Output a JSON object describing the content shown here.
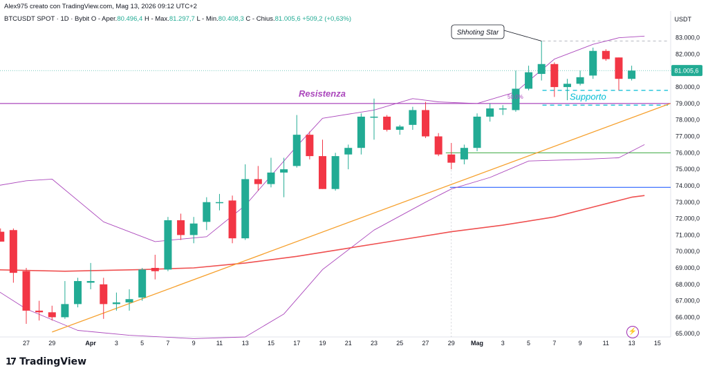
{
  "header": {
    "line1": "Alex975 creato con TradingView.com, Mag 13, 2026 09:12 UTC+2",
    "symbol": "BTCUSDT SPOT · 1D · Bybit",
    "open_label": "O - Aper.",
    "open_value": "80.496,4",
    "high_label": "H - Max.",
    "high_value": "81.297,7",
    "low_label": "L - Min.",
    "low_value": "80.408,3",
    "close_label": "C - Chius.",
    "close_value": "81.005,6",
    "change_value": "+509,2 (+0,63%)"
  },
  "footer": {
    "brand": "TradingView",
    "logo_icon": "tradingview-logo-icon"
  },
  "colors": {
    "up": "#22ab94",
    "down": "#f23645",
    "accent": "#ab47bc",
    "trend": "#f6a02d",
    "ma": "#ef4f4f",
    "support": "#00bcd4",
    "green_line": "#4caf50",
    "blue_line": "#2962ff"
  },
  "chart_data": {
    "type": "candlestick",
    "unit": "USDT",
    "ylim": [
      64800,
      83700
    ],
    "y_ticks": [
      "65.000,0",
      "66.000,0",
      "67.000,0",
      "68.000,0",
      "69.000,0",
      "70.000,0",
      "71.000,0",
      "72.000,0",
      "73.000,0",
      "74.000,0",
      "75.000,0",
      "76.000,0",
      "77.000,0",
      "78.000,0",
      "79.000,0",
      "80.000,0",
      "81.000,0",
      "82.000,0",
      "83.000,0"
    ],
    "x_ticks": [
      "27",
      "29",
      "Apr",
      "3",
      "5",
      "7",
      "9",
      "11",
      "13",
      "15",
      "17",
      "19",
      "21",
      "23",
      "25",
      "27",
      "29",
      "Mag",
      "3",
      "5",
      "7",
      "9",
      "11",
      "13",
      "15"
    ],
    "last_price_label": "81.005,6",
    "candles": [
      {
        "date": "2026-03-25",
        "o": 71200,
        "h": 71400,
        "l": 70600,
        "c": 70600
      },
      {
        "date": "2026-03-26",
        "o": 71300,
        "h": 71400,
        "l": 68100,
        "c": 68700
      },
      {
        "date": "2026-03-27",
        "o": 68800,
        "h": 69000,
        "l": 65600,
        "c": 66400
      },
      {
        "date": "2026-03-28",
        "o": 66400,
        "h": 67000,
        "l": 65800,
        "c": 66300
      },
      {
        "date": "2026-03-29",
        "o": 66300,
        "h": 66700,
        "l": 65800,
        "c": 66000
      },
      {
        "date": "2026-03-30",
        "o": 66000,
        "h": 68200,
        "l": 65900,
        "c": 66800
      },
      {
        "date": "2026-03-31",
        "o": 66800,
        "h": 68400,
        "l": 66600,
        "c": 68200
      },
      {
        "date": "2026-04-01",
        "o": 68100,
        "h": 69300,
        "l": 67700,
        "c": 68200
      },
      {
        "date": "2026-04-02",
        "o": 68000,
        "h": 68400,
        "l": 65900,
        "c": 66800
      },
      {
        "date": "2026-04-03",
        "o": 66800,
        "h": 67500,
        "l": 66400,
        "c": 66900
      },
      {
        "date": "2026-04-04",
        "o": 66900,
        "h": 67700,
        "l": 66400,
        "c": 67100
      },
      {
        "date": "2026-04-05",
        "o": 67200,
        "h": 69000,
        "l": 67000,
        "c": 68900
      },
      {
        "date": "2026-04-06",
        "o": 69000,
        "h": 69800,
        "l": 68300,
        "c": 68800
      },
      {
        "date": "2026-04-07",
        "o": 68900,
        "h": 72100,
        "l": 68800,
        "c": 71900
      },
      {
        "date": "2026-04-08",
        "o": 71900,
        "h": 72300,
        "l": 70700,
        "c": 71000
      },
      {
        "date": "2026-04-09",
        "o": 71000,
        "h": 72100,
        "l": 70500,
        "c": 71700
      },
      {
        "date": "2026-04-10",
        "o": 71800,
        "h": 73300,
        "l": 71300,
        "c": 73000
      },
      {
        "date": "2026-04-11",
        "o": 73000,
        "h": 73500,
        "l": 72500,
        "c": 73000
      },
      {
        "date": "2026-04-12",
        "o": 73100,
        "h": 73400,
        "l": 70500,
        "c": 70800
      },
      {
        "date": "2026-04-13",
        "o": 70800,
        "h": 75300,
        "l": 70700,
        "c": 74400
      },
      {
        "date": "2026-04-14",
        "o": 74400,
        "h": 75200,
        "l": 73700,
        "c": 74100
      },
      {
        "date": "2026-04-15",
        "o": 74100,
        "h": 75700,
        "l": 73900,
        "c": 74800
      },
      {
        "date": "2026-04-16",
        "o": 74800,
        "h": 75700,
        "l": 73300,
        "c": 75000
      },
      {
        "date": "2026-04-17",
        "o": 75200,
        "h": 78300,
        "l": 75100,
        "c": 77100
      },
      {
        "date": "2026-04-18",
        "o": 77100,
        "h": 77300,
        "l": 75600,
        "c": 75800
      },
      {
        "date": "2026-04-19",
        "o": 75800,
        "h": 76800,
        "l": 73800,
        "c": 73800
      },
      {
        "date": "2026-04-20",
        "o": 73800,
        "h": 76000,
        "l": 73700,
        "c": 75800
      },
      {
        "date": "2026-04-21",
        "o": 75900,
        "h": 76500,
        "l": 75000,
        "c": 76300
      },
      {
        "date": "2026-04-22",
        "o": 76300,
        "h": 78400,
        "l": 75900,
        "c": 78200
      },
      {
        "date": "2026-04-23",
        "o": 78200,
        "h": 79300,
        "l": 76800,
        "c": 78200
      },
      {
        "date": "2026-04-24",
        "o": 78200,
        "h": 78300,
        "l": 77300,
        "c": 77400
      },
      {
        "date": "2026-04-25",
        "o": 77400,
        "h": 77700,
        "l": 77100,
        "c": 77600
      },
      {
        "date": "2026-04-26",
        "o": 77700,
        "h": 78800,
        "l": 77400,
        "c": 78600
      },
      {
        "date": "2026-04-27",
        "o": 78600,
        "h": 79100,
        "l": 76900,
        "c": 77000
      },
      {
        "date": "2026-04-28",
        "o": 77000,
        "h": 77200,
        "l": 75800,
        "c": 75900
      },
      {
        "date": "2026-04-29",
        "o": 75900,
        "h": 76600,
        "l": 75000,
        "c": 75400
      },
      {
        "date": "2026-04-30",
        "o": 75600,
        "h": 76500,
        "l": 75300,
        "c": 76300
      },
      {
        "date": "2026-05-01",
        "o": 76300,
        "h": 78400,
        "l": 76100,
        "c": 78200
      },
      {
        "date": "2026-05-02",
        "o": 78200,
        "h": 79000,
        "l": 77900,
        "c": 78700
      },
      {
        "date": "2026-05-03",
        "o": 78700,
        "h": 78900,
        "l": 78300,
        "c": 78700
      },
      {
        "date": "2026-05-04",
        "o": 78600,
        "h": 81000,
        "l": 78500,
        "c": 79900
      },
      {
        "date": "2026-05-05",
        "o": 79900,
        "h": 81300,
        "l": 79800,
        "c": 80900
      },
      {
        "date": "2026-05-06",
        "o": 80800,
        "h": 82800,
        "l": 80400,
        "c": 81400
      },
      {
        "date": "2026-05-07",
        "o": 81400,
        "h": 81500,
        "l": 79400,
        "c": 80000
      },
      {
        "date": "2026-05-08",
        "o": 80000,
        "h": 80500,
        "l": 79200,
        "c": 80200
      },
      {
        "date": "2026-05-09",
        "o": 80200,
        "h": 81000,
        "l": 80100,
        "c": 80600
      },
      {
        "date": "2026-05-10",
        "o": 80700,
        "h": 82400,
        "l": 80500,
        "c": 82200
      },
      {
        "date": "2026-05-11",
        "o": 82200,
        "h": 82300,
        "l": 81600,
        "c": 81700
      },
      {
        "date": "2026-05-12",
        "o": 81800,
        "h": 81800,
        "l": 79800,
        "c": 80500
      },
      {
        "date": "2026-05-13",
        "o": 80500,
        "h": 81300,
        "l": 80400,
        "c": 81000
      }
    ],
    "moving_average": [
      {
        "date": "2026-03-24",
        "v": 68900
      },
      {
        "date": "2026-03-30",
        "v": 68800
      },
      {
        "date": "2026-04-05",
        "v": 68900
      },
      {
        "date": "2026-04-09",
        "v": 69000
      },
      {
        "date": "2026-04-13",
        "v": 69300
      },
      {
        "date": "2026-04-17",
        "v": 69700
      },
      {
        "date": "2026-04-21",
        "v": 70200
      },
      {
        "date": "2026-04-25",
        "v": 70700
      },
      {
        "date": "2026-04-29",
        "v": 71200
      },
      {
        "date": "2026-05-03",
        "v": 71600
      },
      {
        "date": "2026-05-07",
        "v": 72100
      },
      {
        "date": "2026-05-10",
        "v": 72700
      },
      {
        "date": "2026-05-13",
        "v": 73300
      },
      {
        "date": "2026-05-14",
        "v": 73400
      }
    ],
    "bollinger_upper": [
      {
        "date": "2026-03-24",
        "v": 73900
      },
      {
        "date": "2026-03-27",
        "v": 74300
      },
      {
        "date": "2026-03-29",
        "v": 74400
      },
      {
        "date": "2026-04-02",
        "v": 71800
      },
      {
        "date": "2026-04-06",
        "v": 70600
      },
      {
        "date": "2026-04-10",
        "v": 70900
      },
      {
        "date": "2026-04-13",
        "v": 72800
      },
      {
        "date": "2026-04-17",
        "v": 76400
      },
      {
        "date": "2026-04-19",
        "v": 78100
      },
      {
        "date": "2026-04-23",
        "v": 78600
      },
      {
        "date": "2026-04-26",
        "v": 79300
      },
      {
        "date": "2026-04-28",
        "v": 79100
      },
      {
        "date": "2026-05-01",
        "v": 79000
      },
      {
        "date": "2026-05-04",
        "v": 79700
      },
      {
        "date": "2026-05-07",
        "v": 81700
      },
      {
        "date": "2026-05-10",
        "v": 82600
      },
      {
        "date": "2026-05-12",
        "v": 83000
      },
      {
        "date": "2026-05-14",
        "v": 83100
      }
    ],
    "bollinger_lower": [
      {
        "date": "2026-03-24",
        "v": 68000
      },
      {
        "date": "2026-03-27",
        "v": 66500
      },
      {
        "date": "2026-03-31",
        "v": 65200
      },
      {
        "date": "2026-04-04",
        "v": 64900
      },
      {
        "date": "2026-04-09",
        "v": 64700
      },
      {
        "date": "2026-04-13",
        "v": 64800
      },
      {
        "date": "2026-04-16",
        "v": 66200
      },
      {
        "date": "2026-04-19",
        "v": 68900
      },
      {
        "date": "2026-04-23",
        "v": 71300
      },
      {
        "date": "2026-04-27",
        "v": 73000
      },
      {
        "date": "2026-04-29",
        "v": 73800
      },
      {
        "date": "2026-05-02",
        "v": 74500
      },
      {
        "date": "2026-05-05",
        "v": 75500
      },
      {
        "date": "2026-05-09",
        "v": 75600
      },
      {
        "date": "2026-05-12",
        "v": 75700
      },
      {
        "date": "2026-05-14",
        "v": 76500
      }
    ],
    "resistance_level": 79000,
    "support_levels": [
      79800,
      78900
    ],
    "green_level": 76000,
    "blue_level": 73900,
    "trendline": [
      {
        "date": "2026-03-29",
        "v": 65100
      },
      {
        "date": "2026-05-16",
        "v": 79000
      }
    ],
    "annotations": {
      "resistance_label": "Resistenza",
      "support_label": "Supporto",
      "shooting_star_label": "Shhoting Star",
      "fib_label": "50.0%"
    }
  }
}
